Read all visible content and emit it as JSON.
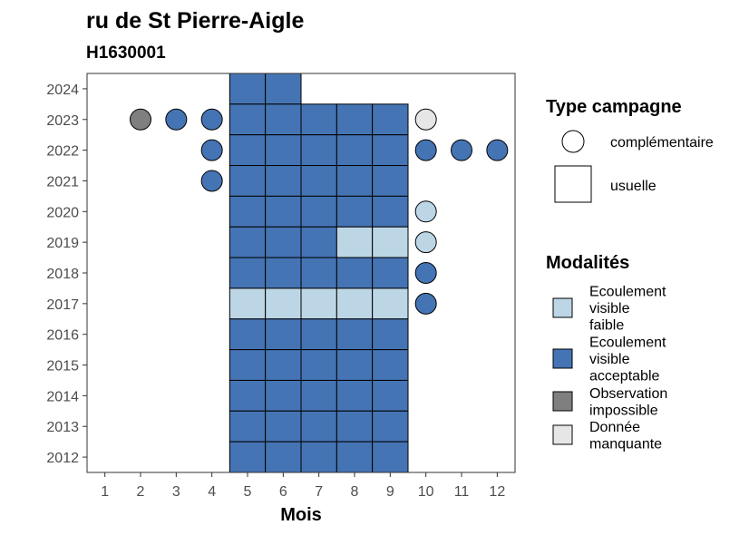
{
  "chart_data": {
    "type": "tile",
    "title": "ru de St Pierre-Aigle",
    "subtitle": "H1630001",
    "xlabel": "Mois",
    "ylabel": "",
    "x_ticks": [
      1,
      2,
      3,
      4,
      5,
      6,
      7,
      8,
      9,
      10,
      11,
      12
    ],
    "y_ticks": [
      2012,
      2013,
      2014,
      2015,
      2016,
      2017,
      2018,
      2019,
      2020,
      2021,
      2022,
      2023,
      2024
    ],
    "x_tick_labels": [
      "1",
      "2",
      "3",
      "4",
      "5",
      "6",
      "7",
      "8",
      "9",
      "10",
      "11",
      "12"
    ],
    "y_tick_labels": [
      "2012",
      "2013",
      "2014",
      "2015",
      "2016",
      "2017",
      "2018",
      "2019",
      "2020",
      "2021",
      "2022",
      "2023",
      "2024"
    ],
    "xlim": [
      0.5,
      12.5
    ],
    "ylim": [
      2011.5,
      2024.5
    ],
    "colors": {
      "ecoulement_faible": "#bcd6e6",
      "ecoulement_acceptable": "#4574b4",
      "observation_impossible": "#7f7f7f",
      "donnee_manquante": "#e6e6e6"
    },
    "legend_type": {
      "title": "Type campagne",
      "items": [
        {
          "label": "complémentaire",
          "shape": "circle"
        },
        {
          "label": "usuelle",
          "shape": "square"
        }
      ]
    },
    "legend_modalites": {
      "title": "Modalités",
      "items": [
        {
          "key": "ecoulement_faible",
          "lines": [
            "Ecoulement",
            "visible",
            "faible"
          ]
        },
        {
          "key": "ecoulement_acceptable",
          "lines": [
            "Ecoulement",
            "visible",
            "acceptable"
          ]
        },
        {
          "key": "observation_impossible",
          "lines": [
            "Observation",
            "impossible"
          ]
        },
        {
          "key": "donnee_manquante",
          "lines": [
            "Donnée",
            "manquante"
          ]
        }
      ]
    },
    "points": [
      {
        "year": 2024,
        "month": 5,
        "type": "usuelle",
        "mod": "ecoulement_acceptable"
      },
      {
        "year": 2024,
        "month": 6,
        "type": "usuelle",
        "mod": "ecoulement_acceptable"
      },
      {
        "year": 2023,
        "month": 2,
        "type": "complementaire",
        "mod": "observation_impossible"
      },
      {
        "year": 2023,
        "month": 3,
        "type": "complementaire",
        "mod": "ecoulement_acceptable"
      },
      {
        "year": 2023,
        "month": 4,
        "type": "complementaire",
        "mod": "ecoulement_acceptable"
      },
      {
        "year": 2023,
        "month": 5,
        "type": "usuelle",
        "mod": "ecoulement_acceptable"
      },
      {
        "year": 2023,
        "month": 6,
        "type": "usuelle",
        "mod": "ecoulement_acceptable"
      },
      {
        "year": 2023,
        "month": 7,
        "type": "usuelle",
        "mod": "ecoulement_acceptable"
      },
      {
        "year": 2023,
        "month": 8,
        "type": "usuelle",
        "mod": "ecoulement_acceptable"
      },
      {
        "year": 2023,
        "month": 9,
        "type": "usuelle",
        "mod": "ecoulement_acceptable"
      },
      {
        "year": 2023,
        "month": 10,
        "type": "complementaire",
        "mod": "donnee_manquante"
      },
      {
        "year": 2022,
        "month": 4,
        "type": "complementaire",
        "mod": "ecoulement_acceptable"
      },
      {
        "year": 2022,
        "month": 5,
        "type": "usuelle",
        "mod": "ecoulement_acceptable"
      },
      {
        "year": 2022,
        "month": 6,
        "type": "usuelle",
        "mod": "ecoulement_acceptable"
      },
      {
        "year": 2022,
        "month": 7,
        "type": "usuelle",
        "mod": "ecoulement_acceptable"
      },
      {
        "year": 2022,
        "month": 8,
        "type": "usuelle",
        "mod": "ecoulement_acceptable"
      },
      {
        "year": 2022,
        "month": 9,
        "type": "usuelle",
        "mod": "ecoulement_acceptable"
      },
      {
        "year": 2022,
        "month": 10,
        "type": "complementaire",
        "mod": "ecoulement_acceptable"
      },
      {
        "year": 2022,
        "month": 11,
        "type": "complementaire",
        "mod": "ecoulement_acceptable"
      },
      {
        "year": 2022,
        "month": 12,
        "type": "complementaire",
        "mod": "ecoulement_acceptable"
      },
      {
        "year": 2021,
        "month": 4,
        "type": "complementaire",
        "mod": "ecoulement_acceptable"
      },
      {
        "year": 2021,
        "month": 5,
        "type": "usuelle",
        "mod": "ecoulement_acceptable"
      },
      {
        "year": 2021,
        "month": 6,
        "type": "usuelle",
        "mod": "ecoulement_acceptable"
      },
      {
        "year": 2021,
        "month": 7,
        "type": "usuelle",
        "mod": "ecoulement_acceptable"
      },
      {
        "year": 2021,
        "month": 8,
        "type": "usuelle",
        "mod": "ecoulement_acceptable"
      },
      {
        "year": 2021,
        "month": 9,
        "type": "usuelle",
        "mod": "ecoulement_acceptable"
      },
      {
        "year": 2020,
        "month": 5,
        "type": "usuelle",
        "mod": "ecoulement_acceptable"
      },
      {
        "year": 2020,
        "month": 6,
        "type": "usuelle",
        "mod": "ecoulement_acceptable"
      },
      {
        "year": 2020,
        "month": 7,
        "type": "usuelle",
        "mod": "ecoulement_acceptable"
      },
      {
        "year": 2020,
        "month": 8,
        "type": "usuelle",
        "mod": "ecoulement_acceptable"
      },
      {
        "year": 2020,
        "month": 9,
        "type": "usuelle",
        "mod": "ecoulement_acceptable"
      },
      {
        "year": 2020,
        "month": 10,
        "type": "complementaire",
        "mod": "ecoulement_faible"
      },
      {
        "year": 2019,
        "month": 5,
        "type": "usuelle",
        "mod": "ecoulement_acceptable"
      },
      {
        "year": 2019,
        "month": 6,
        "type": "usuelle",
        "mod": "ecoulement_acceptable"
      },
      {
        "year": 2019,
        "month": 7,
        "type": "usuelle",
        "mod": "ecoulement_acceptable"
      },
      {
        "year": 2019,
        "month": 8,
        "type": "usuelle",
        "mod": "ecoulement_faible"
      },
      {
        "year": 2019,
        "month": 9,
        "type": "usuelle",
        "mod": "ecoulement_faible"
      },
      {
        "year": 2019,
        "month": 10,
        "type": "complementaire",
        "mod": "ecoulement_faible"
      },
      {
        "year": 2018,
        "month": 5,
        "type": "usuelle",
        "mod": "ecoulement_acceptable"
      },
      {
        "year": 2018,
        "month": 6,
        "type": "usuelle",
        "mod": "ecoulement_acceptable"
      },
      {
        "year": 2018,
        "month": 7,
        "type": "usuelle",
        "mod": "ecoulement_acceptable"
      },
      {
        "year": 2018,
        "month": 8,
        "type": "usuelle",
        "mod": "ecoulement_acceptable"
      },
      {
        "year": 2018,
        "month": 9,
        "type": "usuelle",
        "mod": "ecoulement_acceptable"
      },
      {
        "year": 2018,
        "month": 10,
        "type": "complementaire",
        "mod": "ecoulement_acceptable"
      },
      {
        "year": 2017,
        "month": 5,
        "type": "usuelle",
        "mod": "ecoulement_faible"
      },
      {
        "year": 2017,
        "month": 6,
        "type": "usuelle",
        "mod": "ecoulement_faible"
      },
      {
        "year": 2017,
        "month": 7,
        "type": "usuelle",
        "mod": "ecoulement_faible"
      },
      {
        "year": 2017,
        "month": 8,
        "type": "usuelle",
        "mod": "ecoulement_faible"
      },
      {
        "year": 2017,
        "month": 9,
        "type": "usuelle",
        "mod": "ecoulement_faible"
      },
      {
        "year": 2017,
        "month": 10,
        "type": "complementaire",
        "mod": "ecoulement_acceptable"
      },
      {
        "year": 2016,
        "month": 5,
        "type": "usuelle",
        "mod": "ecoulement_acceptable"
      },
      {
        "year": 2016,
        "month": 6,
        "type": "usuelle",
        "mod": "ecoulement_acceptable"
      },
      {
        "year": 2016,
        "month": 7,
        "type": "usuelle",
        "mod": "ecoulement_acceptable"
      },
      {
        "year": 2016,
        "month": 8,
        "type": "usuelle",
        "mod": "ecoulement_acceptable"
      },
      {
        "year": 2016,
        "month": 9,
        "type": "usuelle",
        "mod": "ecoulement_acceptable"
      },
      {
        "year": 2015,
        "month": 5,
        "type": "usuelle",
        "mod": "ecoulement_acceptable"
      },
      {
        "year": 2015,
        "month": 6,
        "type": "usuelle",
        "mod": "ecoulement_acceptable"
      },
      {
        "year": 2015,
        "month": 7,
        "type": "usuelle",
        "mod": "ecoulement_acceptable"
      },
      {
        "year": 2015,
        "month": 8,
        "type": "usuelle",
        "mod": "ecoulement_acceptable"
      },
      {
        "year": 2015,
        "month": 9,
        "type": "usuelle",
        "mod": "ecoulement_acceptable"
      },
      {
        "year": 2014,
        "month": 5,
        "type": "usuelle",
        "mod": "ecoulement_acceptable"
      },
      {
        "year": 2014,
        "month": 6,
        "type": "usuelle",
        "mod": "ecoulement_acceptable"
      },
      {
        "year": 2014,
        "month": 7,
        "type": "usuelle",
        "mod": "ecoulement_acceptable"
      },
      {
        "year": 2014,
        "month": 8,
        "type": "usuelle",
        "mod": "ecoulement_acceptable"
      },
      {
        "year": 2014,
        "month": 9,
        "type": "usuelle",
        "mod": "ecoulement_acceptable"
      },
      {
        "year": 2013,
        "month": 5,
        "type": "usuelle",
        "mod": "ecoulement_acceptable"
      },
      {
        "year": 2013,
        "month": 6,
        "type": "usuelle",
        "mod": "ecoulement_acceptable"
      },
      {
        "year": 2013,
        "month": 7,
        "type": "usuelle",
        "mod": "ecoulement_acceptable"
      },
      {
        "year": 2013,
        "month": 8,
        "type": "usuelle",
        "mod": "ecoulement_acceptable"
      },
      {
        "year": 2013,
        "month": 9,
        "type": "usuelle",
        "mod": "ecoulement_acceptable"
      },
      {
        "year": 2012,
        "month": 5,
        "type": "usuelle",
        "mod": "ecoulement_acceptable"
      },
      {
        "year": 2012,
        "month": 6,
        "type": "usuelle",
        "mod": "ecoulement_acceptable"
      },
      {
        "year": 2012,
        "month": 7,
        "type": "usuelle",
        "mod": "ecoulement_acceptable"
      },
      {
        "year": 2012,
        "month": 8,
        "type": "usuelle",
        "mod": "ecoulement_acceptable"
      },
      {
        "year": 2012,
        "month": 9,
        "type": "usuelle",
        "mod": "ecoulement_acceptable"
      }
    ]
  }
}
